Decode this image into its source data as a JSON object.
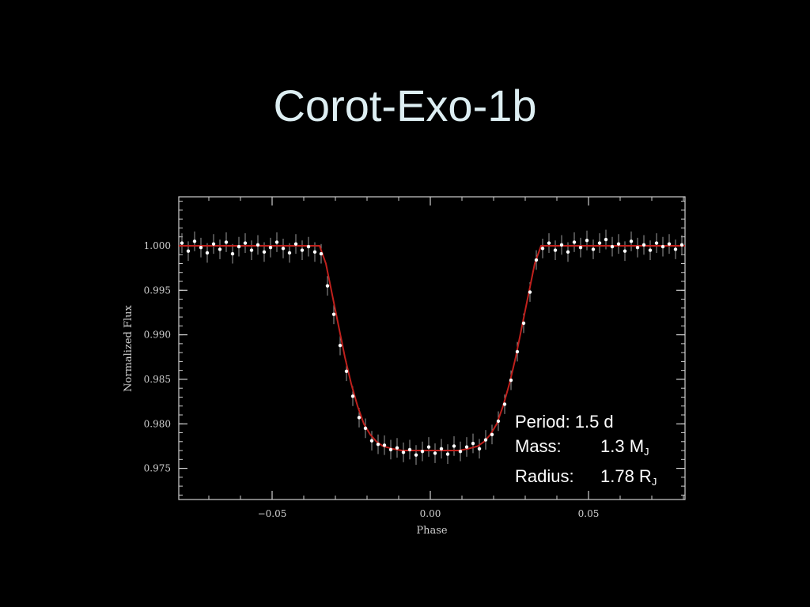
{
  "slide": {
    "title": "Corot-Exo-1b"
  },
  "info": {
    "period_label": "Period:",
    "period_value": "1.5 d",
    "mass_label": "Mass:",
    "mass_value": "1.3 M",
    "mass_sub": "J",
    "radius_label": "Radius:",
    "radius_value": "1.78 R",
    "radius_sub": "J"
  },
  "colors": {
    "background": "#000000",
    "model_line": "#c0201c",
    "points": "#ffffff",
    "error_bars": "#9a9a9a",
    "frame": "#cfcfcf"
  },
  "chart_data": {
    "type": "scatter",
    "title": "",
    "xlabel": "Phase",
    "ylabel": "Normalized Flux",
    "xlim": [
      -0.0795,
      0.0805
    ],
    "ylim": [
      0.9715,
      1.0055
    ],
    "x_ticks": [
      -0.05,
      0.0,
      0.05
    ],
    "x_tick_labels": [
      "−0.05",
      "0.00",
      "0.05"
    ],
    "y_ticks": [
      1.0,
      0.995,
      0.99,
      0.985,
      0.98,
      0.975
    ],
    "y_tick_labels": [
      "1.000",
      "0.995",
      "0.990",
      "0.985",
      "0.980",
      "0.975"
    ],
    "grid": false,
    "error_bar": 0.0011,
    "series": [
      {
        "type": "line",
        "x": [
          -0.0795,
          -0.035,
          -0.033,
          -0.031,
          -0.029,
          -0.027,
          -0.025,
          -0.023,
          -0.021,
          -0.019,
          -0.017,
          -0.015,
          -0.012,
          -0.009,
          -0.006,
          -0.003,
          0.0,
          0.003,
          0.006,
          0.009,
          0.012,
          0.015,
          0.017,
          0.019,
          0.021,
          0.023,
          0.025,
          0.027,
          0.029,
          0.031,
          0.033,
          0.035,
          0.0805
        ],
        "y": [
          1.0,
          1.0,
          0.998,
          0.9945,
          0.991,
          0.9875,
          0.9845,
          0.982,
          0.98,
          0.9788,
          0.978,
          0.9775,
          0.9772,
          0.977,
          0.977,
          0.977,
          0.977,
          0.977,
          0.977,
          0.977,
          0.9772,
          0.9775,
          0.978,
          0.9788,
          0.98,
          0.982,
          0.9845,
          0.9875,
          0.991,
          0.9945,
          0.998,
          1.0,
          1.0
        ]
      },
      {
        "type": "scatter",
        "x": [
          -0.0785,
          -0.0765,
          -0.0745,
          -0.0725,
          -0.0705,
          -0.0685,
          -0.0665,
          -0.0645,
          -0.0625,
          -0.0605,
          -0.0585,
          -0.0565,
          -0.0545,
          -0.0525,
          -0.0505,
          -0.0485,
          -0.0465,
          -0.0445,
          -0.0425,
          -0.0405,
          -0.0385,
          -0.0365,
          -0.0345,
          -0.0325,
          -0.0305,
          -0.0285,
          -0.0265,
          -0.0245,
          -0.0225,
          -0.0205,
          -0.0185,
          -0.0165,
          -0.0145,
          -0.0125,
          -0.0105,
          -0.0085,
          -0.0065,
          -0.0045,
          -0.0025,
          -0.0005,
          0.0015,
          0.0035,
          0.0055,
          0.0075,
          0.0095,
          0.0115,
          0.0135,
          0.0155,
          0.0175,
          0.0195,
          0.0215,
          0.0235,
          0.0255,
          0.0275,
          0.0295,
          0.0315,
          0.0335,
          0.0355,
          0.0375,
          0.0395,
          0.0415,
          0.0435,
          0.0455,
          0.0475,
          0.0495,
          0.0515,
          0.0535,
          0.0555,
          0.0575,
          0.0595,
          0.0615,
          0.0635,
          0.0655,
          0.0675,
          0.0695,
          0.0715,
          0.0735,
          0.0755,
          0.0775,
          0.0795
        ],
        "y": [
          1.0003,
          0.9994,
          1.0005,
          0.9998,
          0.9992,
          1.0002,
          0.9996,
          1.0004,
          0.9991,
          0.9999,
          1.0003,
          0.9995,
          1.0001,
          0.9993,
          0.9998,
          1.0004,
          0.9997,
          0.9992,
          1.0002,
          0.9995,
          0.9999,
          0.9993,
          0.9991,
          0.9955,
          0.9923,
          0.9888,
          0.9859,
          0.9831,
          0.9807,
          0.9795,
          0.9781,
          0.9777,
          0.9776,
          0.9771,
          0.9773,
          0.9768,
          0.9771,
          0.9765,
          0.9769,
          0.9774,
          0.9767,
          0.9772,
          0.9766,
          0.9775,
          0.9769,
          0.9774,
          0.9778,
          0.9772,
          0.9782,
          0.9788,
          0.9803,
          0.9822,
          0.9849,
          0.9881,
          0.9913,
          0.9948,
          0.9984,
          0.9997,
          1.0003,
          0.9995,
          1.0001,
          0.9993,
          1.0004,
          0.9998,
          1.0006,
          0.9996,
          1.0003,
          1.0007,
          0.9999,
          1.0002,
          0.9994,
          1.0005,
          0.9998,
          1.0001,
          0.9995,
          1.0003,
          0.9999,
          1.0002,
          0.9996,
          1.0001
        ]
      }
    ]
  }
}
